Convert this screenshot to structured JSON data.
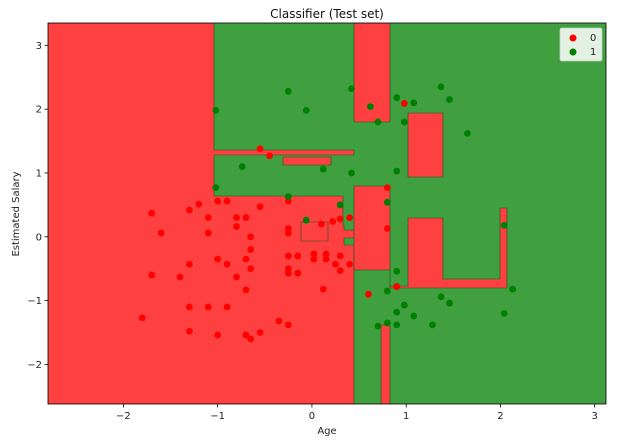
{
  "chart_data": {
    "type": "scatter",
    "title": "Classifier (Test set)",
    "xlabel": "Age",
    "ylabel": "Estimated Salary",
    "xlim": [
      -2.8,
      3.12
    ],
    "ylim": [
      -2.62,
      3.35
    ],
    "xticks": [
      -2,
      -1,
      0,
      1,
      2,
      3
    ],
    "yticks": [
      -2,
      -1,
      0,
      1,
      2,
      3
    ],
    "xtick_labels": [
      "−2",
      "−1",
      "0",
      "1",
      "2",
      "3"
    ],
    "ytick_labels": [
      "−2",
      "−1",
      "0",
      "1",
      "2",
      "3"
    ],
    "legend_position": "top-right",
    "colors": {
      "class0": "#ff0000",
      "class1": "#008000",
      "region0": "#ff4040",
      "region1": "#40a040"
    },
    "series": [
      {
        "name": "0",
        "points": [
          [
            -1.8,
            -1.27
          ],
          [
            -1.7,
            0.37
          ],
          [
            -1.6,
            0.06
          ],
          [
            -1.7,
            -0.6
          ],
          [
            -1.4,
            -0.63
          ],
          [
            -1.3,
            0.42
          ],
          [
            -1.3,
            -0.43
          ],
          [
            -1.3,
            -1.1
          ],
          [
            -1.3,
            -1.48
          ],
          [
            -1.2,
            0.51
          ],
          [
            -1.1,
            0.3
          ],
          [
            -1.1,
            0.06
          ],
          [
            -1.1,
            -1.1
          ],
          [
            -1.0,
            0.56
          ],
          [
            -1.0,
            -0.35
          ],
          [
            -1.0,
            -1.54
          ],
          [
            -0.9,
            0.56
          ],
          [
            -0.9,
            -0.43
          ],
          [
            -0.9,
            -1.1
          ],
          [
            -0.8,
            0.3
          ],
          [
            -0.8,
            0.16
          ],
          [
            -0.8,
            -0.63
          ],
          [
            -0.7,
            0.3
          ],
          [
            -0.7,
            -0.35
          ],
          [
            -0.7,
            -0.83
          ],
          [
            -0.7,
            -1.54
          ],
          [
            -0.65,
            0.0
          ],
          [
            -0.65,
            -0.2
          ],
          [
            -0.65,
            -0.5
          ],
          [
            -0.65,
            -1.6
          ],
          [
            -0.55,
            1.38
          ],
          [
            -0.55,
            0.47
          ],
          [
            -0.55,
            -1.5
          ],
          [
            -0.45,
            1.27
          ],
          [
            -0.35,
            -1.32
          ],
          [
            -0.25,
            0.56
          ],
          [
            -0.25,
            0.13
          ],
          [
            -0.25,
            0.06
          ],
          [
            -0.25,
            -0.3
          ],
          [
            -0.25,
            -0.5
          ],
          [
            -0.25,
            -0.57
          ],
          [
            -0.25,
            -1.38
          ],
          [
            -0.15,
            -0.3
          ],
          [
            -0.15,
            -0.57
          ],
          [
            0.02,
            -0.27
          ],
          [
            0.02,
            -0.35
          ],
          [
            0.1,
            0.2
          ],
          [
            0.12,
            -0.82
          ],
          [
            0.15,
            -0.27
          ],
          [
            0.15,
            -0.35
          ],
          [
            0.22,
            0.24
          ],
          [
            0.25,
            -0.43
          ],
          [
            0.3,
            0.28
          ],
          [
            0.3,
            -0.3
          ],
          [
            0.3,
            -0.53
          ],
          [
            0.4,
            0.3
          ],
          [
            0.4,
            -0.43
          ],
          [
            0.6,
            -0.9
          ],
          [
            0.8,
            0.77
          ],
          [
            0.8,
            0.13
          ],
          [
            0.9,
            -0.78
          ],
          [
            0.98,
            2.09
          ]
        ]
      },
      {
        "name": "1",
        "points": [
          [
            -1.02,
            1.98
          ],
          [
            -1.02,
            0.77
          ],
          [
            -0.74,
            1.1
          ],
          [
            -0.25,
            2.28
          ],
          [
            -0.25,
            0.63
          ],
          [
            -0.06,
            1.98
          ],
          [
            -0.06,
            0.26
          ],
          [
            0.12,
            1.06
          ],
          [
            0.3,
            0.5
          ],
          [
            0.42,
            2.32
          ],
          [
            0.42,
            1.0
          ],
          [
            0.62,
            2.04
          ],
          [
            0.7,
            1.8
          ],
          [
            0.7,
            -1.4
          ],
          [
            0.8,
            0.54
          ],
          [
            0.8,
            -0.85
          ],
          [
            0.8,
            -1.35
          ],
          [
            0.9,
            2.18
          ],
          [
            0.9,
            1.03
          ],
          [
            0.9,
            -0.54
          ],
          [
            0.9,
            -1.18
          ],
          [
            0.9,
            -1.38
          ],
          [
            0.98,
            1.8
          ],
          [
            0.98,
            -1.07
          ],
          [
            1.08,
            2.1
          ],
          [
            1.08,
            -1.24
          ],
          [
            1.28,
            -1.38
          ],
          [
            1.37,
            2.35
          ],
          [
            1.37,
            -0.94
          ],
          [
            1.46,
            2.15
          ],
          [
            1.46,
            -1.04
          ],
          [
            1.65,
            1.62
          ],
          [
            2.04,
            0.18
          ],
          [
            2.04,
            -1.2
          ],
          [
            2.13,
            -0.82
          ]
        ]
      }
    ]
  }
}
